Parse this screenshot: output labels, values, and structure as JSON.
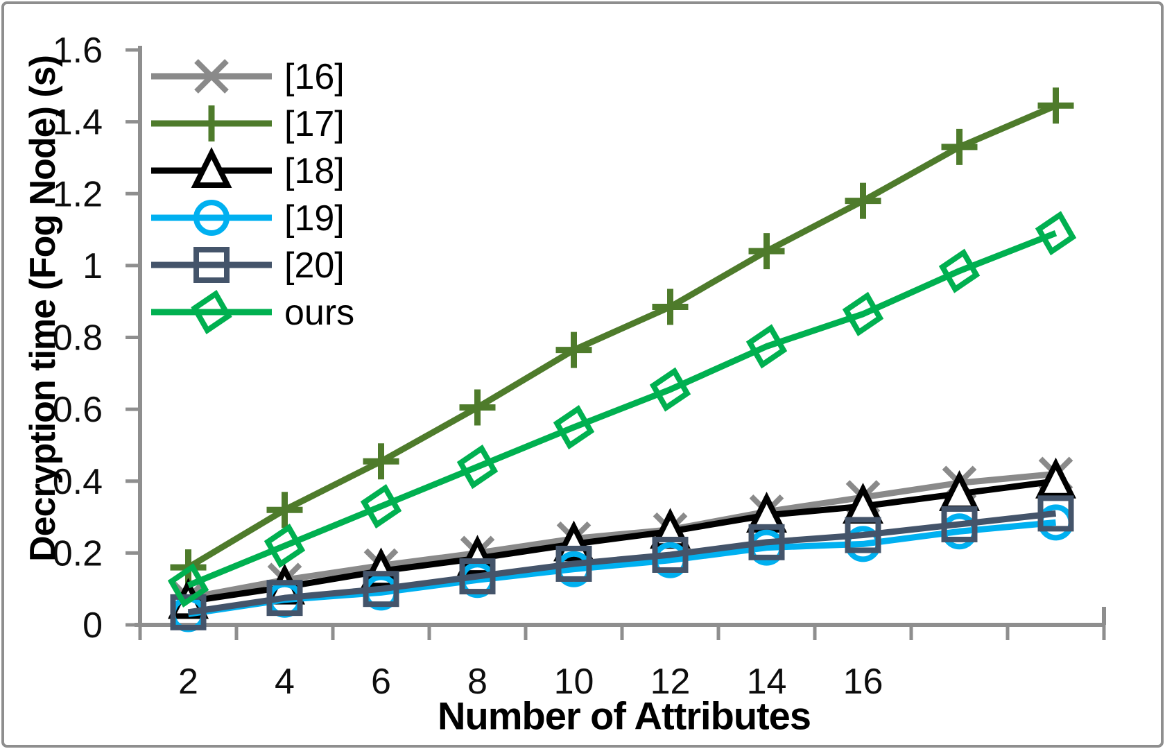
{
  "figure": {
    "frame_color": "#8E8E8E",
    "axis_color": "#8E8E8E",
    "tick_label_color": "#0d0d0d",
    "background": "#FFFFFF"
  },
  "chart_data": {
    "type": "line",
    "title": "",
    "xlabel": "Number of Attributes",
    "ylabel": "Decryption time (Fog Node) (s)",
    "x": [
      2,
      4,
      6,
      8,
      10,
      12,
      14,
      16,
      18,
      20
    ],
    "x_tick_labels": [
      "2",
      "4",
      "6",
      "8",
      "10",
      "12",
      "14",
      "16"
    ],
    "y_ticks": [
      "0",
      "0.2",
      "0.4",
      "0.6",
      "0.8",
      "1",
      "1.2",
      "1.4",
      "1.6"
    ],
    "y_tick_values": [
      0,
      0.2,
      0.4,
      0.6,
      0.8,
      1.0,
      1.2,
      1.4,
      1.6
    ],
    "ylim": [
      0,
      1.6
    ],
    "grid": false,
    "legend_position": "top-left-inside",
    "series": [
      {
        "name": "[16]",
        "color": "#8A8A8A",
        "marker": "x",
        "values": [
          0.075,
          0.125,
          0.165,
          0.2,
          0.24,
          0.265,
          0.315,
          0.355,
          0.395,
          0.42
        ]
      },
      {
        "name": "[17]",
        "color": "#4E7B2B",
        "marker": "plus",
        "values": [
          0.16,
          0.32,
          0.455,
          0.605,
          0.765,
          0.885,
          1.04,
          1.18,
          1.33,
          1.445
        ]
      },
      {
        "name": "[18]",
        "color": "#000000",
        "marker": "triangle",
        "marker_fill": "#FFFFFF",
        "values": [
          0.065,
          0.105,
          0.15,
          0.185,
          0.225,
          0.26,
          0.305,
          0.33,
          0.365,
          0.4
        ]
      },
      {
        "name": "[19]",
        "color": "#00B0F0",
        "marker": "circle",
        "values": [
          0.03,
          0.07,
          0.09,
          0.125,
          0.155,
          0.18,
          0.215,
          0.225,
          0.26,
          0.285
        ]
      },
      {
        "name": "[20]",
        "color": "#44546A",
        "marker": "square",
        "values": [
          0.035,
          0.075,
          0.1,
          0.135,
          0.17,
          0.195,
          0.23,
          0.25,
          0.28,
          0.31
        ]
      },
      {
        "name": "ours",
        "color": "#00B050",
        "marker": "diamond",
        "values": [
          0.11,
          0.22,
          0.33,
          0.44,
          0.55,
          0.655,
          0.775,
          0.865,
          0.985,
          1.09
        ]
      }
    ]
  }
}
